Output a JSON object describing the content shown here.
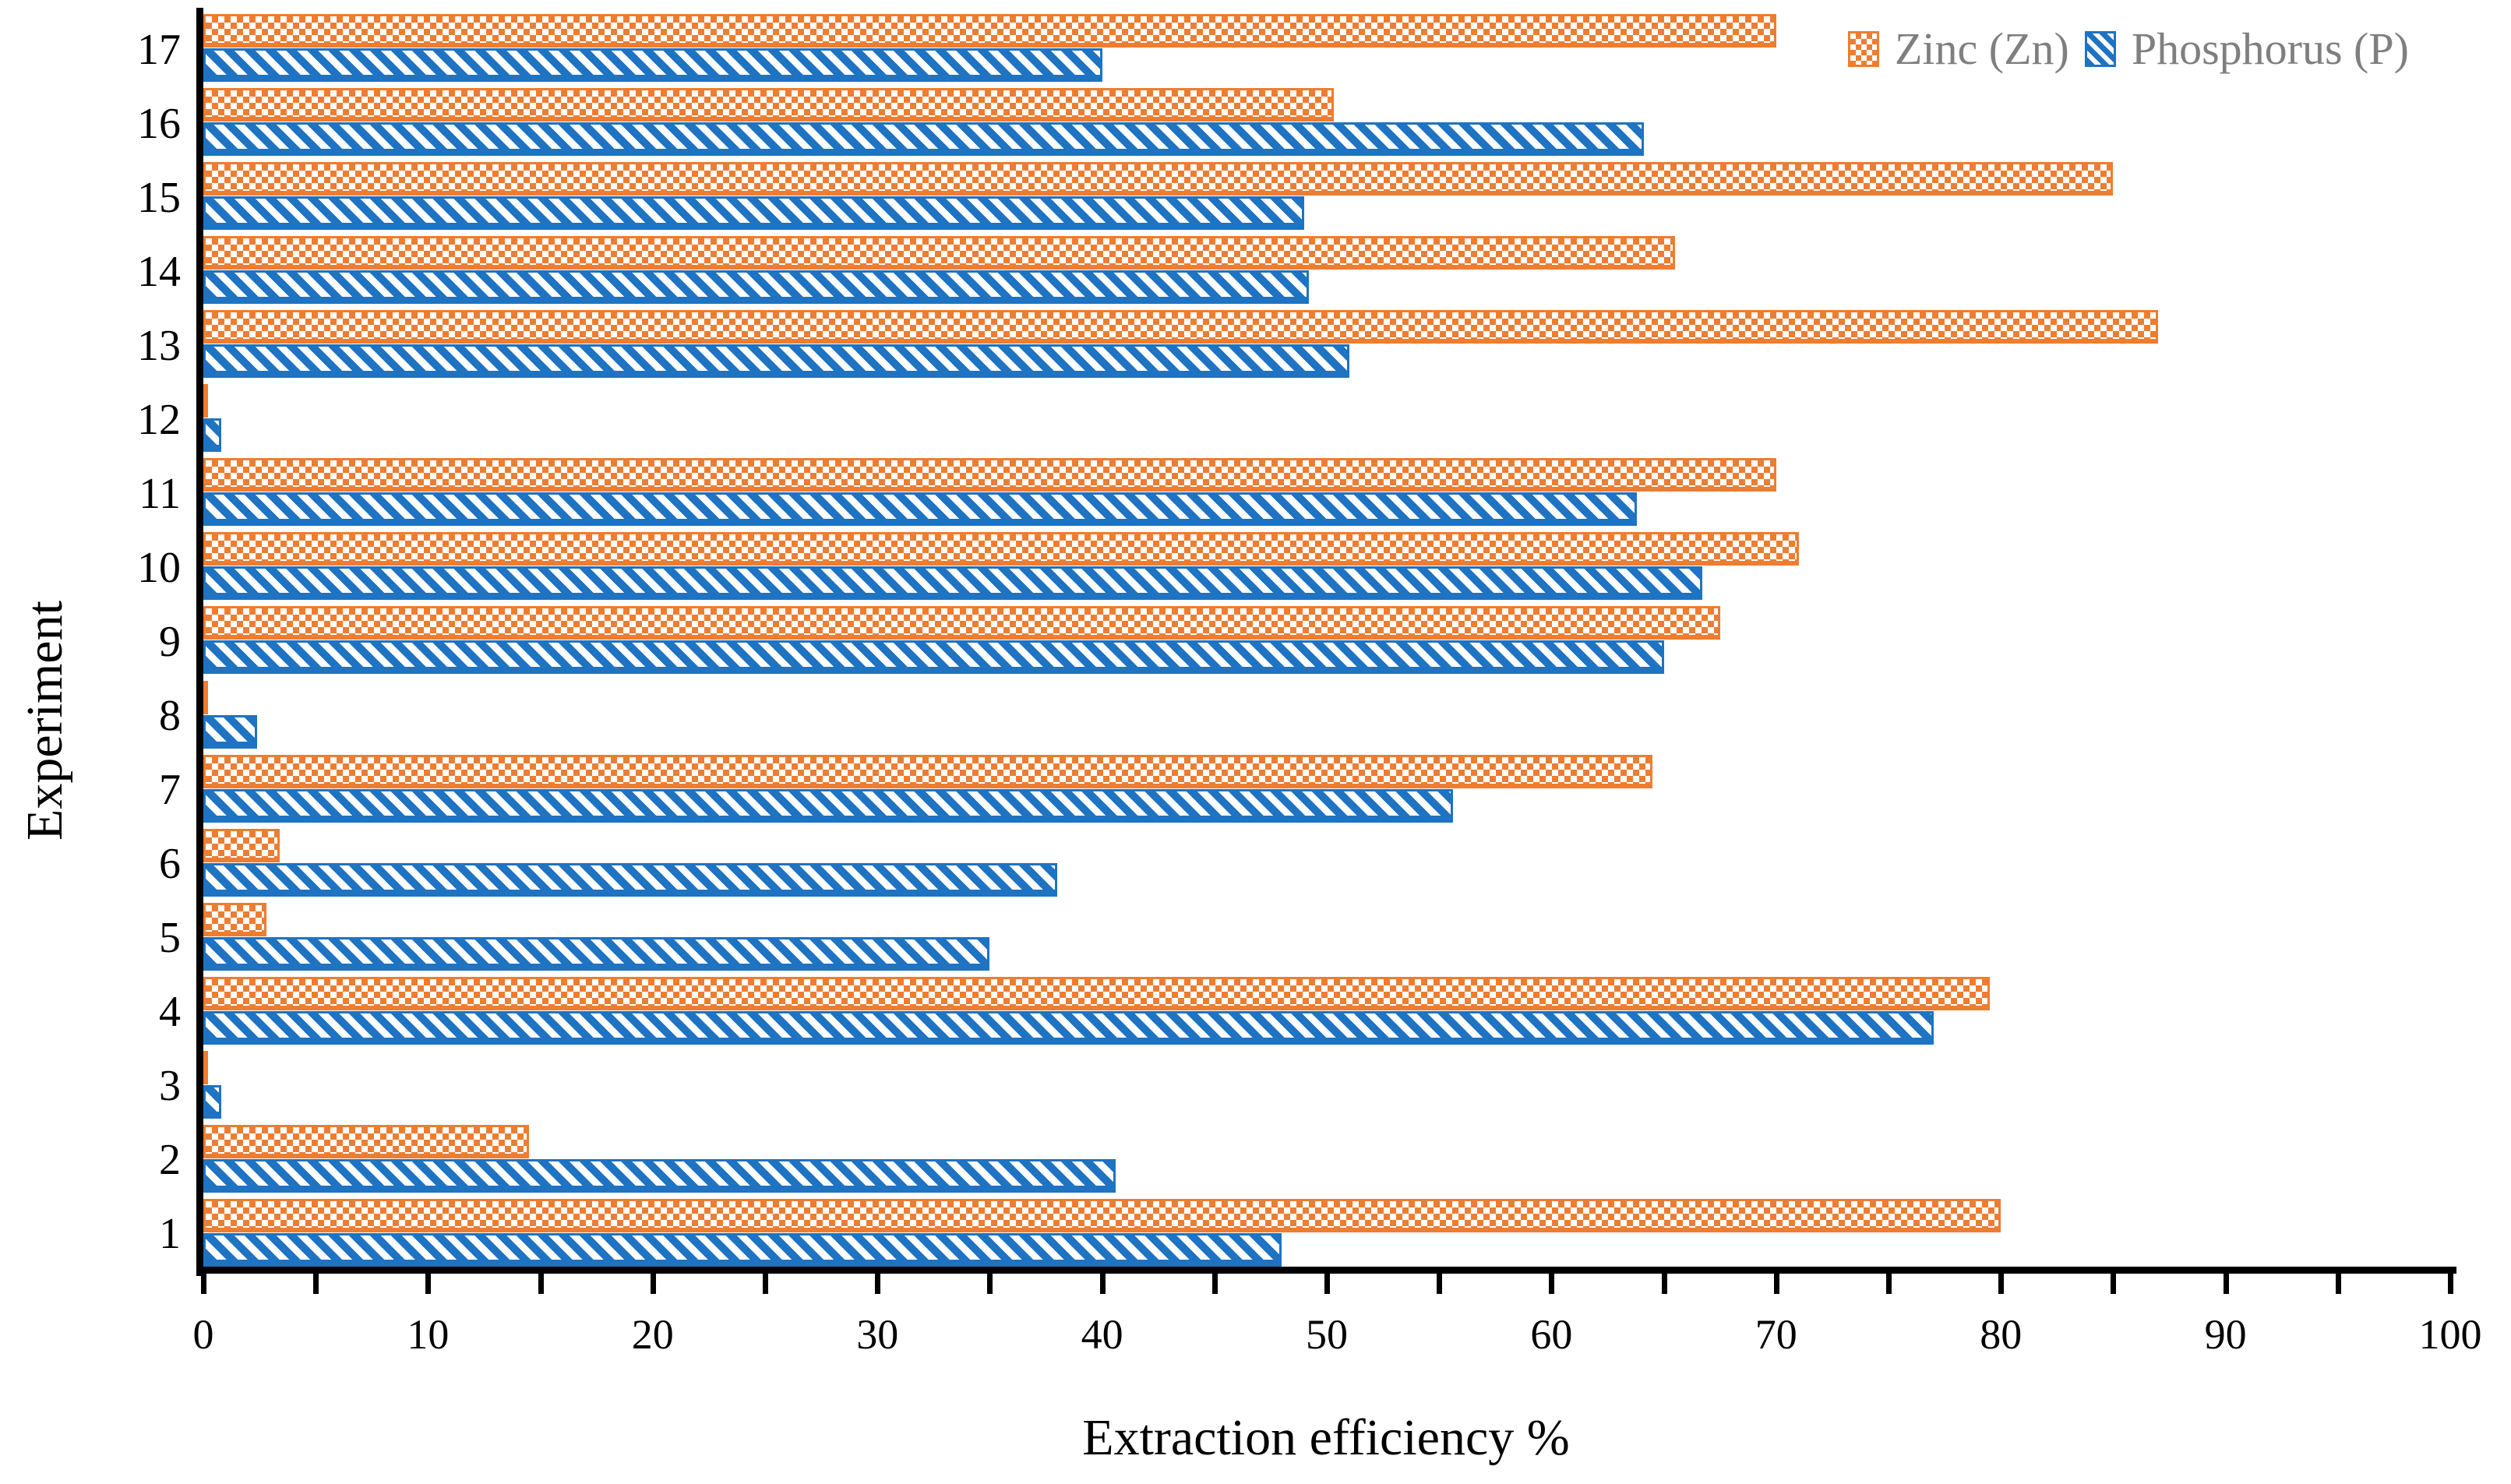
{
  "chart_data": {
    "type": "bar",
    "orientation": "horizontal-grouped",
    "title": "",
    "xlabel": "Extraction efficiency %",
    "ylabel": "Experiment",
    "categories": [
      "1",
      "2",
      "3",
      "4",
      "5",
      "6",
      "7",
      "8",
      "9",
      "10",
      "11",
      "12",
      "13",
      "14",
      "15",
      "16",
      "17"
    ],
    "series": [
      {
        "name": "Zinc (Zn)",
        "color": "#ED7D31",
        "pattern": "orange-checkerboard",
        "values": [
          80,
          14.5,
          0.2,
          79.5,
          2.8,
          3.4,
          64.5,
          0.2,
          67.5,
          71,
          70,
          0.2,
          87,
          65.5,
          85,
          50.3,
          70
        ]
      },
      {
        "name": "Phosphorus (P)",
        "color": "#1E73C2",
        "pattern": "blue-downward-diagonal-stripes",
        "values": [
          48,
          40.6,
          0.8,
          77,
          35,
          38,
          55.6,
          2.4,
          65,
          66.7,
          63.8,
          0.8,
          51,
          49.2,
          49,
          64.1,
          40
        ]
      }
    ],
    "xlim": [
      0,
      100
    ],
    "xtick_major": 10,
    "xtick_minor": 5,
    "grid": false,
    "legend_position": "top-right",
    "category_order_on_screen": "17 at top, 1 at bottom",
    "axis_text_color": "#000000",
    "legend_text_color": "#7f7f7f"
  }
}
